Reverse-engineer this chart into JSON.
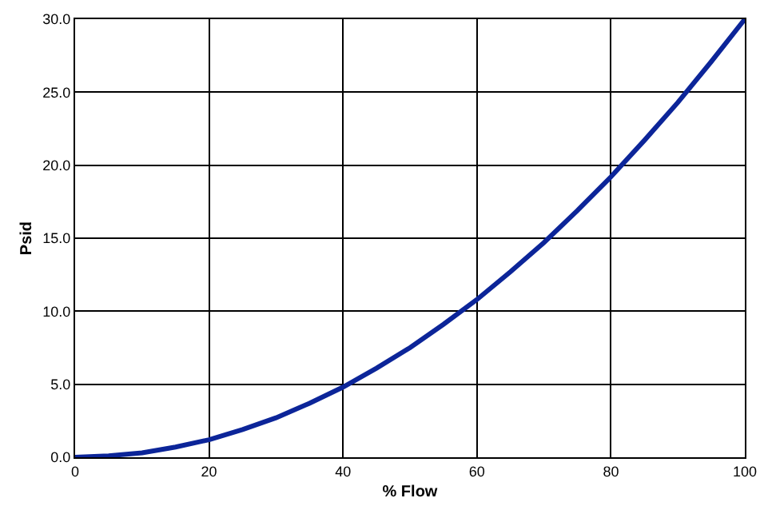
{
  "chart_data": {
    "type": "line",
    "xlabel": "% Flow",
    "ylabel": "Psid",
    "x": [
      0,
      5,
      10,
      15,
      20,
      25,
      30,
      35,
      40,
      45,
      50,
      55,
      60,
      65,
      70,
      75,
      80,
      85,
      90,
      95,
      100
    ],
    "series": [
      {
        "color": "#0c2599",
        "values": [
          0,
          0.1,
          0.3,
          0.7,
          1.2,
          1.9,
          2.7,
          3.7,
          4.8,
          6.1,
          7.5,
          9.1,
          10.8,
          12.7,
          14.7,
          16.9,
          19.2,
          21.7,
          24.3,
          27.1,
          30
        ]
      }
    ],
    "xlim": [
      0,
      100
    ],
    "xticks": [
      0,
      20,
      40,
      60,
      80,
      100
    ],
    "ylim": [
      0,
      30
    ],
    "yticks": [
      {
        "value": 0,
        "label": "0.0"
      },
      {
        "value": 5,
        "label": "5.0"
      },
      {
        "value": 10,
        "label": "10.0"
      },
      {
        "value": 15,
        "label": "15.0"
      },
      {
        "value": 20,
        "label": "20.0"
      },
      {
        "value": 25,
        "label": "25.0"
      },
      {
        "value": 30,
        "label": "30.0"
      }
    ],
    "grid": true,
    "marker": "none",
    "line_style": "solid"
  }
}
